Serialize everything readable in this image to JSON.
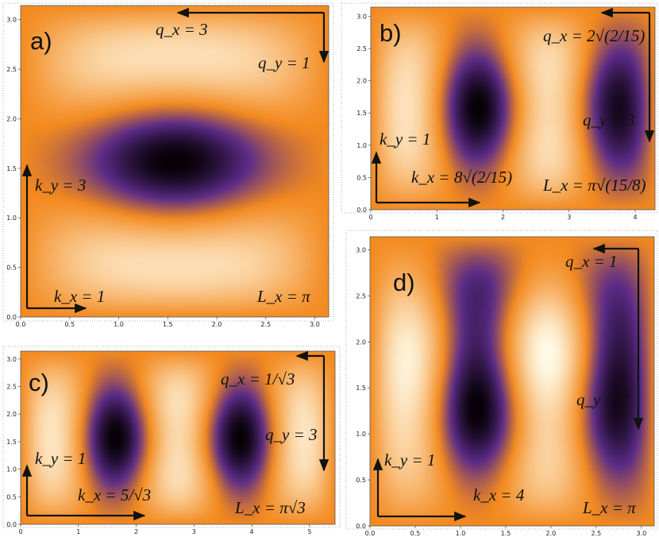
{
  "chart_data": [
    {
      "type": "heatmap",
      "panel_label": "a)",
      "xlim": [
        0,
        3.1416
      ],
      "ylim": [
        0,
        3.1416
      ],
      "xticks": [
        "0.0",
        "0.5",
        "1.0",
        "1.5",
        "2.0",
        "2.5",
        "3.0"
      ],
      "yticks": [
        "0.0",
        "0.5",
        "1.0",
        "1.5",
        "2.0",
        "2.5",
        "3.0"
      ],
      "mode": {
        "kx": 1,
        "ky": 3,
        "qx": 3,
        "qy": 1,
        "c": 0.2
      },
      "annotations": {
        "kx": "k_x = 1",
        "ky": "k_y = 3",
        "qx": "q_x = 3",
        "qy": "q_y = 1",
        "L": "L_x = π"
      }
    },
    {
      "type": "heatmap",
      "panel_label": "b)",
      "xlim": [
        0,
        4.3
      ],
      "ylim": [
        0,
        3.1416
      ],
      "xticks": [
        "0",
        "1",
        "2",
        "3",
        "4"
      ],
      "yticks": [
        "0.0",
        "0.5",
        "1.0",
        "1.5",
        "2.0",
        "2.5",
        "3.0"
      ],
      "mode": {
        "kx": 2.9212,
        "ky": 1,
        "qx": 0.7303,
        "qy": 3,
        "c": 0.2
      },
      "annotations": {
        "kx": "k_x = 8√(2/15)",
        "ky": "k_y = 1",
        "qx": "q_x = 2√(2/15)",
        "qy": "q_y = 3",
        "L": "L_x = π√(15/8)"
      }
    },
    {
      "type": "heatmap",
      "panel_label": "c)",
      "xlim": [
        0,
        5.4414
      ],
      "ylim": [
        0,
        3.1416
      ],
      "xticks": [
        "0",
        "1",
        "2",
        "3",
        "4",
        "5"
      ],
      "yticks": [
        "0.0",
        "0.5",
        "1.0",
        "1.5",
        "2.0",
        "2.5",
        "3.0"
      ],
      "mode": {
        "kx": 2.8868,
        "ky": 1,
        "qx": 0.5774,
        "qy": 3,
        "c": 0.2
      },
      "annotations": {
        "kx": "k_x = 5/√3",
        "ky": "k_y = 1",
        "qx": "q_x = 1/√3",
        "qy": "q_y = 3",
        "L": "L_x = π√3"
      }
    },
    {
      "type": "heatmap",
      "panel_label": "d)",
      "xlim": [
        0,
        3.1416
      ],
      "ylim": [
        0,
        3.1416
      ],
      "xticks": [
        "0.0",
        "0.5",
        "1.0",
        "1.5",
        "2.0",
        "2.5",
        "3.0"
      ],
      "yticks": [
        "0.0",
        "0.5",
        "1.0",
        "1.5",
        "2.0",
        "2.5",
        "3.0"
      ],
      "mode": {
        "kx": 4,
        "ky": 1,
        "qx": 1,
        "qy": 4,
        "c": 0.2
      },
      "annotations": {
        "kx": "k_x = 4",
        "ky": "k_y = 1",
        "qx": "q_x = 1",
        "qy": "q_y = 4",
        "L": "L_x = π"
      }
    }
  ],
  "colors": {
    "base": "#f38a1f",
    "bright": "#fffbe8",
    "dark": "#050005",
    "violet": "#5c2c88",
    "frame": "#555555"
  }
}
